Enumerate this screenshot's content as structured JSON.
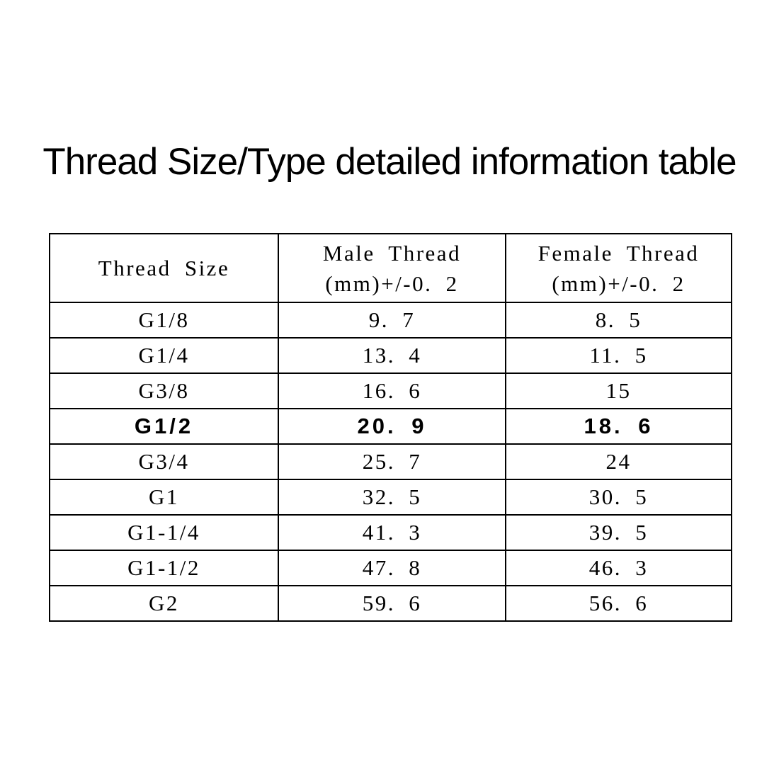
{
  "title": "Thread Size/Type detailed information table",
  "table": {
    "header": {
      "col1": "Thread Size",
      "col2_line1": "Male Thread",
      "col2_line2": "(mm)+/-0. 2",
      "col3_line1": "Female Thread",
      "col3_line2": "(mm)+/-0. 2"
    },
    "rows": [
      {
        "size": "G1/8",
        "male": "9. 7",
        "female": "8. 5",
        "bold": false
      },
      {
        "size": "G1/4",
        "male": "13. 4",
        "female": "11. 5",
        "bold": false
      },
      {
        "size": "G3/8",
        "male": "16. 6",
        "female": "15",
        "bold": false
      },
      {
        "size": "G1/2",
        "male": "20. 9",
        "female": "18. 6",
        "bold": true
      },
      {
        "size": "G3/4",
        "male": "25. 7",
        "female": "24",
        "bold": false
      },
      {
        "size": "G1",
        "male": "32. 5",
        "female": "30. 5",
        "bold": false
      },
      {
        "size": "G1-1/4",
        "male": "41. 3",
        "female": "39. 5",
        "bold": false
      },
      {
        "size": "G1-1/2",
        "male": "47. 8",
        "female": "46. 3",
        "bold": false
      },
      {
        "size": "G2",
        "male": "59. 6",
        "female": "56. 6",
        "bold": false
      }
    ],
    "colors": {
      "text": "#000000",
      "border": "#000000",
      "background": "#ffffff"
    }
  }
}
